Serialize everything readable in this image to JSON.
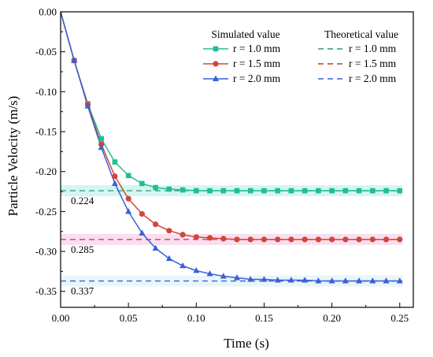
{
  "chart_data": {
    "type": "line",
    "xlabel": "Time (s)",
    "ylabel": "Particle Velocity (m/s)",
    "xlim": [
      0,
      0.26
    ],
    "ylim": [
      -0.37,
      0
    ],
    "x_ticks": [
      "0.00",
      "0.05",
      "0.10",
      "0.15",
      "0.20",
      "0.25"
    ],
    "y_ticks": [
      "0.00",
      "-0.05",
      "-0.10",
      "-0.15",
      "-0.20",
      "-0.25",
      "-0.30",
      "-0.35"
    ],
    "legend": {
      "position": "top-right",
      "simulated_header": "Simulated value",
      "theoretical_header": "Theoretical value"
    },
    "series": [
      {
        "name": "r = 1.0 mm",
        "marker": "square",
        "color": "#1fbf8f",
        "x": [
          0,
          0.01,
          0.02,
          0.03,
          0.04,
          0.05,
          0.06,
          0.07,
          0.08,
          0.09,
          0.1,
          0.11,
          0.12,
          0.13,
          0.14,
          0.15,
          0.16,
          0.17,
          0.18,
          0.19,
          0.2,
          0.21,
          0.22,
          0.23,
          0.24,
          0.25
        ],
        "y": [
          0,
          -0.061,
          -0.115,
          -0.159,
          -0.188,
          -0.205,
          -0.215,
          -0.22,
          -0.222,
          -0.223,
          -0.224,
          -0.224,
          -0.224,
          -0.224,
          -0.224,
          -0.224,
          -0.224,
          -0.224,
          -0.224,
          -0.224,
          -0.224,
          -0.224,
          -0.224,
          -0.224,
          -0.224,
          -0.224
        ]
      },
      {
        "name": "r = 1.5 mm",
        "marker": "circle",
        "color": "#d2453a",
        "x": [
          0,
          0.01,
          0.02,
          0.03,
          0.04,
          0.05,
          0.06,
          0.07,
          0.08,
          0.09,
          0.1,
          0.11,
          0.12,
          0.13,
          0.14,
          0.15,
          0.16,
          0.17,
          0.18,
          0.19,
          0.2,
          0.21,
          0.22,
          0.23,
          0.24,
          0.25
        ],
        "y": [
          0,
          -0.061,
          -0.116,
          -0.166,
          -0.206,
          -0.234,
          -0.253,
          -0.266,
          -0.274,
          -0.279,
          -0.282,
          -0.283,
          -0.284,
          -0.285,
          -0.285,
          -0.285,
          -0.285,
          -0.285,
          -0.285,
          -0.285,
          -0.285,
          -0.285,
          -0.285,
          -0.285,
          -0.285,
          -0.285
        ]
      },
      {
        "name": "r = 2.0 mm",
        "marker": "triangle",
        "color": "#3a5fd6",
        "x": [
          0,
          0.01,
          0.02,
          0.03,
          0.04,
          0.05,
          0.06,
          0.07,
          0.08,
          0.09,
          0.1,
          0.11,
          0.12,
          0.13,
          0.14,
          0.15,
          0.16,
          0.17,
          0.18,
          0.19,
          0.2,
          0.21,
          0.22,
          0.23,
          0.24,
          0.25
        ],
        "y": [
          0,
          -0.061,
          -0.118,
          -0.17,
          -0.215,
          -0.25,
          -0.277,
          -0.296,
          -0.309,
          -0.318,
          -0.324,
          -0.328,
          -0.331,
          -0.333,
          -0.335,
          -0.335,
          -0.336,
          -0.336,
          -0.336,
          -0.337,
          -0.337,
          -0.337,
          -0.337,
          -0.337,
          -0.337,
          -0.337
        ]
      }
    ],
    "theoretical": [
      {
        "name": "r = 1.0 mm",
        "value": -0.224,
        "label": "0.224",
        "color": "#2f9a6f",
        "band_color": "#c9f3ee"
      },
      {
        "name": "r = 1.5 mm",
        "value": -0.285,
        "label": "0.285",
        "color": "#c0392b",
        "band_color": "#f8d6ec"
      },
      {
        "name": "r = 2.0 mm",
        "value": -0.337,
        "label": "0.337",
        "color": "#3a5fd6",
        "band_color": "#e2f3fa"
      }
    ]
  }
}
